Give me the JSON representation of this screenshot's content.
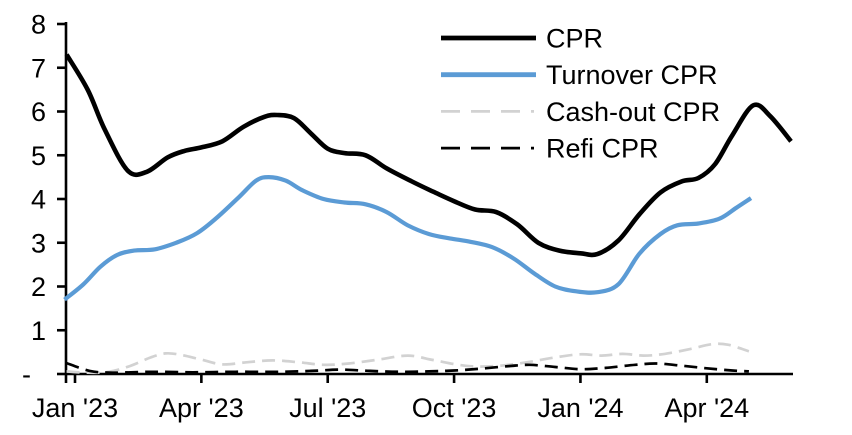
{
  "chart_data": {
    "type": "line",
    "title": "",
    "x_axis": {
      "unit": "months_since_Jan_2023",
      "tick_months": [
        0,
        3,
        6,
        9,
        12,
        15
      ],
      "tick_labels": [
        "Jan '23",
        "Apr '23",
        "Jul '23",
        "Oct '23",
        "Jan '24",
        "Apr '24"
      ],
      "range_months": [
        -0.3,
        17.2
      ],
      "grid": false
    },
    "y_axis": {
      "tick_values": [
        0,
        1,
        2,
        3,
        4,
        5,
        6,
        7,
        8
      ],
      "tick_labels": [
        "-",
        "1",
        "2",
        "3",
        "4",
        "5",
        "6",
        "7",
        "8"
      ],
      "range": [
        0,
        8
      ],
      "grid": false
    },
    "legend": {
      "position": "top-right",
      "entries": [
        "CPR",
        "Turnover CPR",
        "Cash-out CPR",
        "Refi CPR"
      ]
    },
    "series": [
      {
        "name": "CPR",
        "color": "#000000",
        "style": "solid",
        "width": 4.6,
        "points": [
          [
            -0.2,
            7.3
          ],
          [
            0.3,
            6.5
          ],
          [
            0.7,
            5.6
          ],
          [
            1.25,
            4.65
          ],
          [
            1.7,
            4.62
          ],
          [
            2.2,
            4.95
          ],
          [
            2.6,
            5.1
          ],
          [
            3.0,
            5.18
          ],
          [
            3.5,
            5.32
          ],
          [
            4.0,
            5.65
          ],
          [
            4.5,
            5.88
          ],
          [
            4.8,
            5.92
          ],
          [
            5.2,
            5.85
          ],
          [
            5.6,
            5.5
          ],
          [
            6.0,
            5.15
          ],
          [
            6.4,
            5.05
          ],
          [
            6.9,
            5.0
          ],
          [
            7.4,
            4.7
          ],
          [
            8.0,
            4.4
          ],
          [
            8.5,
            4.17
          ],
          [
            9.0,
            3.95
          ],
          [
            9.5,
            3.76
          ],
          [
            10.0,
            3.7
          ],
          [
            10.5,
            3.42
          ],
          [
            11.0,
            3.0
          ],
          [
            11.5,
            2.82
          ],
          [
            12.0,
            2.76
          ],
          [
            12.4,
            2.74
          ],
          [
            12.9,
            3.05
          ],
          [
            13.4,
            3.65
          ],
          [
            13.9,
            4.15
          ],
          [
            14.4,
            4.4
          ],
          [
            14.8,
            4.48
          ],
          [
            15.2,
            4.8
          ],
          [
            15.6,
            5.45
          ],
          [
            16.1,
            6.14
          ],
          [
            16.5,
            5.9
          ],
          [
            17.0,
            5.32
          ]
        ]
      },
      {
        "name": "Turnover CPR",
        "color": "#5B9BD5",
        "style": "solid",
        "width": 4.2,
        "points": [
          [
            -0.25,
            1.7
          ],
          [
            0.2,
            2.05
          ],
          [
            0.6,
            2.45
          ],
          [
            1.0,
            2.72
          ],
          [
            1.4,
            2.82
          ],
          [
            1.9,
            2.85
          ],
          [
            2.4,
            3.0
          ],
          [
            2.9,
            3.22
          ],
          [
            3.4,
            3.6
          ],
          [
            3.9,
            4.05
          ],
          [
            4.3,
            4.42
          ],
          [
            4.6,
            4.5
          ],
          [
            5.0,
            4.42
          ],
          [
            5.4,
            4.2
          ],
          [
            5.9,
            4.0
          ],
          [
            6.4,
            3.92
          ],
          [
            6.9,
            3.88
          ],
          [
            7.4,
            3.7
          ],
          [
            7.9,
            3.4
          ],
          [
            8.4,
            3.2
          ],
          [
            8.9,
            3.1
          ],
          [
            9.4,
            3.02
          ],
          [
            9.9,
            2.9
          ],
          [
            10.4,
            2.65
          ],
          [
            10.9,
            2.3
          ],
          [
            11.4,
            2.0
          ],
          [
            11.9,
            1.89
          ],
          [
            12.4,
            1.87
          ],
          [
            12.9,
            2.05
          ],
          [
            13.4,
            2.75
          ],
          [
            13.9,
            3.2
          ],
          [
            14.3,
            3.4
          ],
          [
            14.8,
            3.44
          ],
          [
            15.3,
            3.55
          ],
          [
            15.7,
            3.8
          ],
          [
            16.05,
            4.02
          ]
        ]
      },
      {
        "name": "Cash-out CPR",
        "color": "#D2D2D2",
        "style": "dashed",
        "width": 2.7,
        "points": [
          [
            -0.2,
            0.06
          ],
          [
            0.3,
            0.03
          ],
          [
            0.8,
            0.05
          ],
          [
            1.3,
            0.18
          ],
          [
            1.8,
            0.38
          ],
          [
            2.15,
            0.47
          ],
          [
            2.5,
            0.44
          ],
          [
            3.0,
            0.33
          ],
          [
            3.5,
            0.22
          ],
          [
            4.1,
            0.27
          ],
          [
            4.7,
            0.31
          ],
          [
            5.3,
            0.27
          ],
          [
            5.9,
            0.21
          ],
          [
            6.5,
            0.24
          ],
          [
            7.2,
            0.33
          ],
          [
            7.9,
            0.42
          ],
          [
            8.5,
            0.32
          ],
          [
            9.1,
            0.21
          ],
          [
            9.6,
            0.17
          ],
          [
            10.2,
            0.2
          ],
          [
            10.8,
            0.28
          ],
          [
            11.4,
            0.38
          ],
          [
            12.0,
            0.45
          ],
          [
            12.5,
            0.42
          ],
          [
            13.0,
            0.46
          ],
          [
            13.5,
            0.42
          ],
          [
            14.0,
            0.46
          ],
          [
            14.6,
            0.57
          ],
          [
            15.1,
            0.68
          ],
          [
            15.5,
            0.67
          ],
          [
            16.0,
            0.52
          ]
        ]
      },
      {
        "name": "Refi CPR",
        "color": "#000000",
        "style": "dashed",
        "width": 2.7,
        "points": [
          [
            -0.2,
            0.25
          ],
          [
            0.35,
            0.07
          ],
          [
            0.9,
            0.03
          ],
          [
            1.8,
            0.05
          ],
          [
            2.8,
            0.04
          ],
          [
            3.8,
            0.05
          ],
          [
            4.8,
            0.05
          ],
          [
            5.6,
            0.07
          ],
          [
            6.3,
            0.1
          ],
          [
            7.0,
            0.07
          ],
          [
            7.7,
            0.05
          ],
          [
            8.4,
            0.06
          ],
          [
            9.0,
            0.08
          ],
          [
            9.6,
            0.12
          ],
          [
            10.3,
            0.18
          ],
          [
            10.8,
            0.21
          ],
          [
            11.4,
            0.16
          ],
          [
            12.0,
            0.11
          ],
          [
            12.6,
            0.14
          ],
          [
            13.3,
            0.21
          ],
          [
            13.8,
            0.24
          ],
          [
            14.4,
            0.19
          ],
          [
            15.0,
            0.13
          ],
          [
            15.6,
            0.08
          ],
          [
            16.0,
            0.06
          ]
        ]
      }
    ],
    "colors": {
      "axis": "#000000",
      "cpr": "#000000",
      "turnover_cpr": "#5B9BD5",
      "cashout_cpr": "#D2D2D2",
      "refi_cpr": "#000000",
      "background": "#FFFFFF"
    }
  }
}
